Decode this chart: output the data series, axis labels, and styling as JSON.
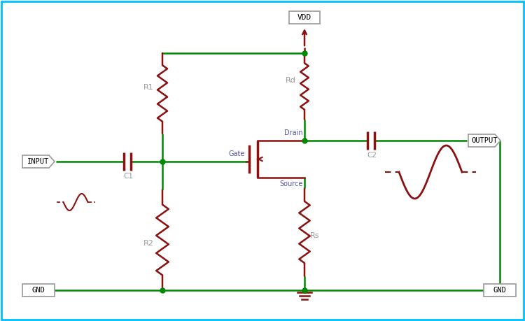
{
  "bg_color": "#ffffff",
  "border_color": "#00bfff",
  "wire_color": "#008800",
  "component_color": "#8b1010",
  "label_color_blue": "#5555aa",
  "label_color_gray": "#999999",
  "fig_width": 7.5,
  "fig_height": 4.59,
  "dpi": 100,
  "xlim": [
    0,
    750
  ],
  "ylim": [
    0,
    459
  ]
}
